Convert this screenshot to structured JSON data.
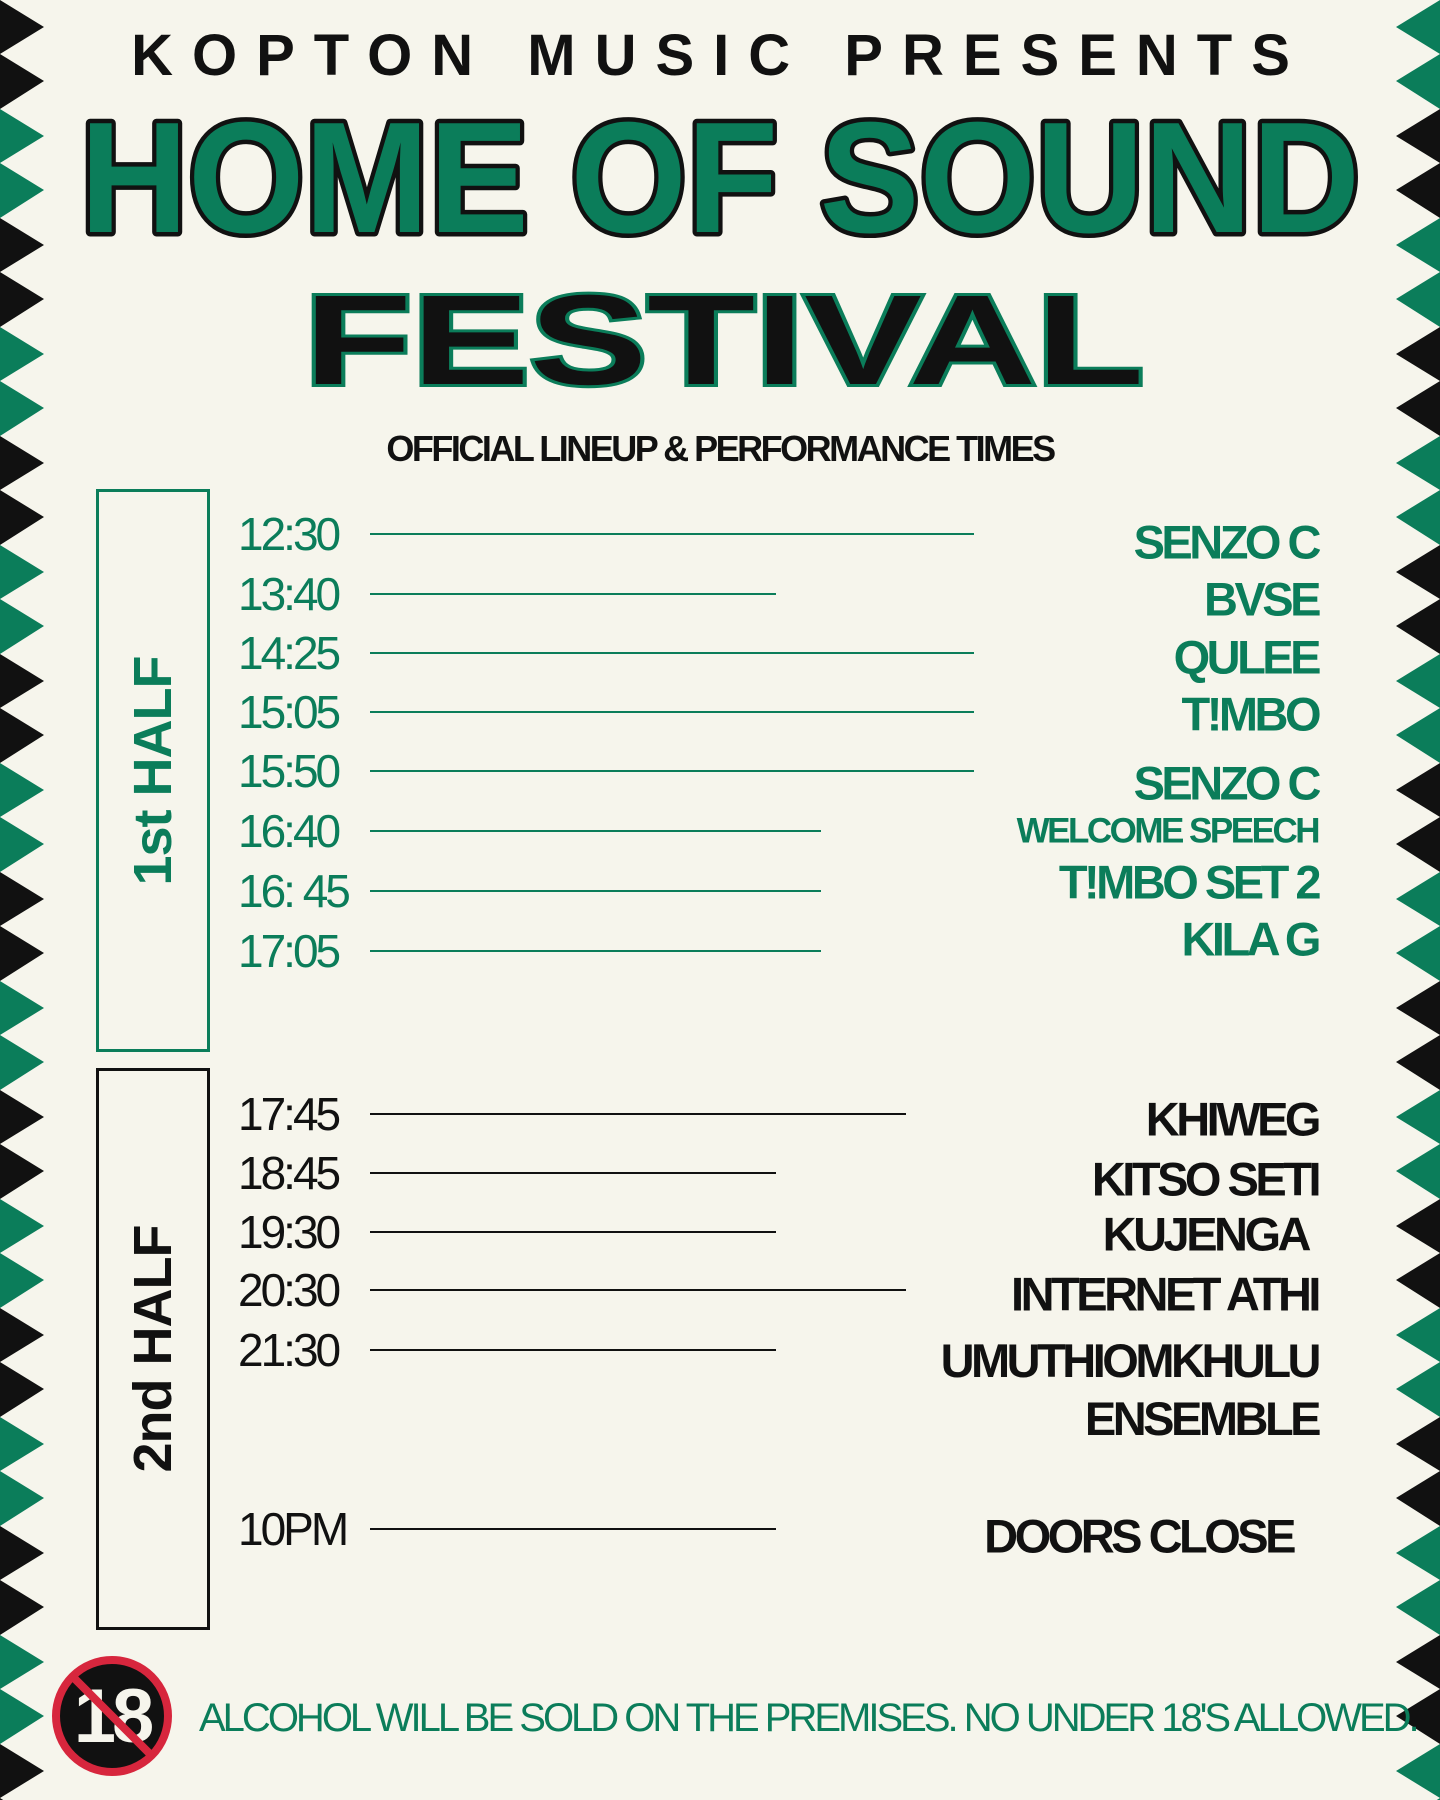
{
  "header": {
    "presenter": "KOPTON MUSIC PRESENTS",
    "title": "HOME OF SOUND",
    "title2": "FESTIVAL",
    "subtitle": "OFFICIAL LINEUP & PERFORMANCE TIMES"
  },
  "colors": {
    "green": "#0b7d5a",
    "black": "#111111",
    "background": "#f6f5ec",
    "badge_red": "#d7263d"
  },
  "first_half": {
    "label": "1st HALF",
    "rows": [
      {
        "time": "12:30",
        "name": "SENZO C"
      },
      {
        "time": "13:40",
        "name": "BVSE"
      },
      {
        "time": "14:25",
        "name": "QULEE"
      },
      {
        "time": "15:05",
        "name": "T!MBO"
      },
      {
        "time": "15:50",
        "name": "SENZO C"
      },
      {
        "time": "16:40",
        "name": "WELCOME SPEECH"
      },
      {
        "time": "16: 45",
        "name": "T!MBO SET 2"
      },
      {
        "time": "17:05",
        "name": "KILA G"
      }
    ]
  },
  "second_half": {
    "label": "2nd HALF",
    "rows": [
      {
        "time": "17:45",
        "name": "KHIWEG"
      },
      {
        "time": "18:45",
        "name": "KITSO SETI"
      },
      {
        "time": "19:30",
        "name": "KUJENGA"
      },
      {
        "time": "20:30",
        "name": "INTERNET ATHI"
      },
      {
        "time": "21:30",
        "name": "UMUTHIOMKHULU ENSEMBLE"
      },
      {
        "time": "10PM",
        "name": "DOORS CLOSE"
      }
    ]
  },
  "footer": {
    "badge": "18",
    "badge_icon": "no-under-18-icon",
    "notice": "ALCOHOL WILL BE SOLD ON THE PREMISES. NO UNDER 18'S ALLOWED."
  }
}
